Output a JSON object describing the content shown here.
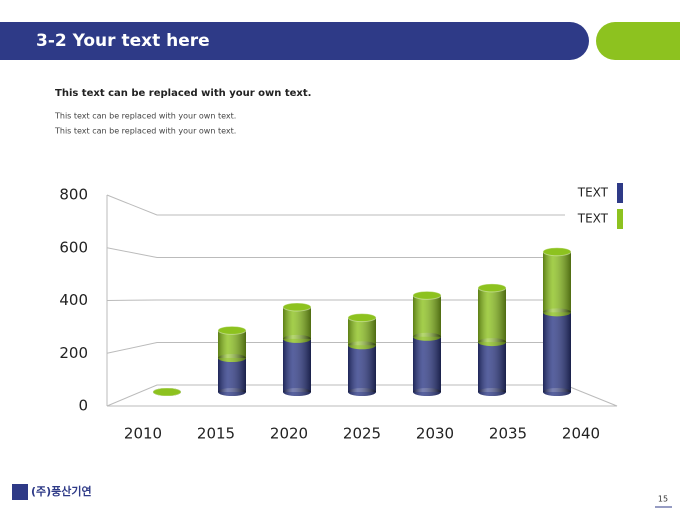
{
  "header": {
    "title": "3-2 Your text here"
  },
  "body": {
    "heading": "This text can be replaced with your own text.",
    "lines": [
      "This text can be replaced with your own text.",
      "This text can be replaced with your own text."
    ]
  },
  "chart_data": {
    "type": "bar3d",
    "stacked": true,
    "categories": [
      "2010",
      "2015",
      "2020",
      "2025",
      "2030",
      "2035",
      "2040"
    ],
    "series": [
      {
        "name": "TEXT",
        "color": "#2e3a87",
        "values": [
          0,
          160,
          250,
          220,
          260,
          235,
          375
        ]
      },
      {
        "name": "TEXT",
        "color": "#8dc21f",
        "values": [
          0,
          130,
          150,
          130,
          195,
          255,
          285
        ]
      }
    ],
    "ylim": [
      0,
      800
    ],
    "yticks": [
      0,
      200,
      400,
      600,
      800
    ],
    "grid": true,
    "legend": "top-right"
  },
  "footer": {
    "logo": "(주)풍산기연",
    "page": "15"
  }
}
